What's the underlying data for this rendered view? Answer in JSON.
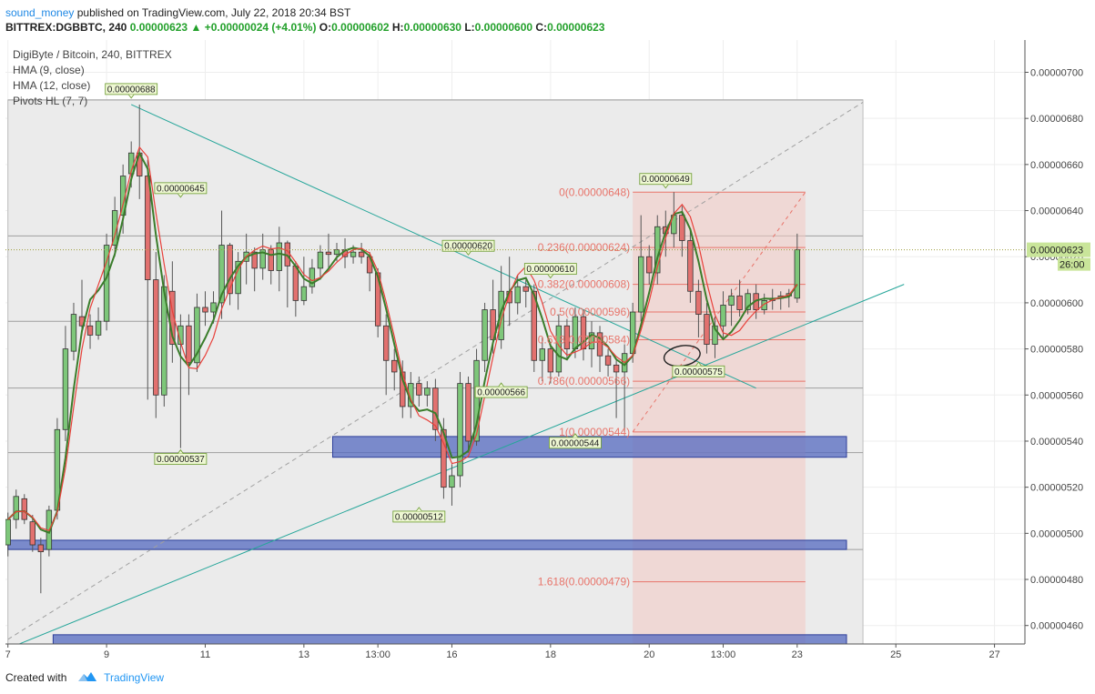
{
  "header": {
    "author": "sound_money",
    "published_text": "published on TradingView.com, July 22, 2018 20:34 BST"
  },
  "quote": {
    "symbol": "BITTREX:DGBBTC, 240",
    "last": "0.00000623",
    "change": "+0.00000024 (+4.01%)",
    "o_label": "O:",
    "o": "0.00000602",
    "h_label": "H:",
    "h": "0.00000630",
    "l_label": "L:",
    "l": "0.00000600",
    "c_label": "C:",
    "c": "0.00000623"
  },
  "legend": {
    "title": "DigiByte / Bitcoin, 240, BITTREX",
    "hma9": "HMA (9, close)",
    "hma12": "HMA (12, close)",
    "pivots": "Pivots HL (7, 7)"
  },
  "footer": {
    "created_with": "Created with",
    "brand": "TradingView"
  },
  "colors": {
    "up": "#7ec77a",
    "down": "#e2716f",
    "hma9": "#3a7d2b",
    "hma12": "#e8403a",
    "trend": "#26a69a",
    "zone": "#5469c0",
    "fib": "#e8746a",
    "bg_shade": "#ebebeb"
  },
  "chart_data": {
    "type": "candlestick",
    "y_tick_labels": [
      "0.00000700",
      "0.00000680",
      "0.00000660",
      "0.00000640",
      "0.00000620",
      "0.00000600",
      "0.00000580",
      "0.00000560",
      "0.00000540",
      "0.00000520",
      "0.00000500",
      "0.00000480",
      "0.00000460"
    ],
    "y_ticks": [
      7.0,
      6.8,
      6.6,
      6.4,
      6.2,
      6.0,
      5.8,
      5.6,
      5.4,
      5.2,
      5.0,
      4.8,
      4.6
    ],
    "y_unit_note": "values in 1e-6 BTC",
    "ylim": [
      4.52,
      7.14
    ],
    "x_tick_labels": [
      "7",
      "9",
      "11",
      "13",
      "13:00",
      "16",
      "18",
      "20",
      "13:00",
      "23",
      "25",
      "27"
    ],
    "x_ticks": [
      0,
      12,
      24,
      36,
      45,
      54,
      66,
      78,
      87,
      96,
      108,
      120
    ],
    "xlim": [
      -0.3,
      123.7
    ],
    "current_price_label": "0.00000623",
    "countdown_label": "26:00",
    "candles": [
      [
        4.95,
        5.06,
        4.9,
        5.09
      ],
      [
        5.06,
        5.16,
        5.02,
        5.19
      ],
      [
        5.15,
        5.06,
        5.04,
        5.17
      ],
      [
        5.05,
        4.95,
        4.92,
        5.08
      ],
      [
        4.95,
        4.92,
        4.74,
        4.98
      ],
      [
        4.93,
        5.1,
        4.9,
        5.12
      ],
      [
        5.1,
        5.45,
        5.06,
        5.5
      ],
      [
        5.45,
        5.8,
        5.4,
        5.9
      ],
      [
        5.79,
        5.95,
        5.75,
        6.0
      ],
      [
        5.94,
        5.9,
        5.86,
        6.1
      ],
      [
        5.9,
        5.86,
        5.8,
        5.95
      ],
      [
        5.86,
        5.92,
        5.84,
        5.98
      ],
      [
        5.92,
        6.25,
        5.88,
        6.3
      ],
      [
        6.25,
        6.4,
        6.2,
        6.46
      ],
      [
        6.38,
        6.55,
        6.3,
        6.6
      ],
      [
        6.56,
        6.65,
        6.5,
        6.7
      ],
      [
        6.65,
        6.55,
        6.45,
        6.86
      ],
      [
        6.55,
        6.1,
        5.58,
        6.62
      ],
      [
        6.1,
        5.6,
        5.5,
        6.22
      ],
      [
        5.6,
        6.07,
        5.55,
        6.12
      ],
      [
        6.05,
        5.82,
        5.74,
        6.18
      ],
      [
        5.82,
        5.9,
        5.37,
        5.95
      ],
      [
        5.9,
        5.74,
        5.6,
        5.95
      ],
      [
        5.74,
        5.98,
        5.7,
        6.04
      ],
      [
        5.98,
        5.96,
        5.9,
        6.05
      ],
      [
        5.96,
        6.0,
        5.91,
        6.05
      ],
      [
        6.0,
        6.25,
        5.93,
        6.4
      ],
      [
        6.25,
        6.04,
        5.99,
        6.26
      ],
      [
        6.04,
        6.18,
        5.97,
        6.22
      ],
      [
        6.18,
        6.22,
        6.08,
        6.3
      ],
      [
        6.22,
        6.15,
        6.05,
        6.24
      ],
      [
        6.15,
        6.23,
        6.1,
        6.3
      ],
      [
        6.23,
        6.14,
        6.08,
        6.25
      ],
      [
        6.14,
        6.26,
        6.05,
        6.33
      ],
      [
        6.26,
        6.16,
        5.98,
        6.27
      ],
      [
        6.16,
        6.01,
        5.94,
        6.18
      ],
      [
        6.01,
        6.07,
        5.99,
        6.2
      ],
      [
        6.07,
        6.15,
        6.04,
        6.19
      ],
      [
        6.15,
        6.22,
        6.1,
        6.25
      ],
      [
        6.22,
        6.21,
        6.15,
        6.3
      ],
      [
        6.21,
        6.23,
        6.18,
        6.26
      ],
      [
        6.23,
        6.2,
        6.15,
        6.28
      ],
      [
        6.2,
        6.22,
        6.17,
        6.25
      ],
      [
        6.22,
        6.2,
        6.17,
        6.26
      ],
      [
        6.2,
        6.13,
        6.05,
        6.22
      ],
      [
        6.13,
        5.9,
        5.85,
        6.15
      ],
      [
        5.9,
        5.75,
        5.6,
        5.95
      ],
      [
        5.75,
        5.7,
        5.62,
        5.8
      ],
      [
        5.7,
        5.55,
        5.5,
        5.75
      ],
      [
        5.55,
        5.65,
        5.5,
        5.7
      ],
      [
        5.65,
        5.6,
        5.55,
        5.68
      ],
      [
        5.6,
        5.63,
        5.55,
        5.66
      ],
      [
        5.63,
        5.45,
        5.4,
        5.67
      ],
      [
        5.45,
        5.2,
        5.15,
        5.5
      ],
      [
        5.2,
        5.25,
        5.12,
        5.3
      ],
      [
        5.25,
        5.65,
        5.2,
        5.7
      ],
      [
        5.65,
        5.4,
        5.35,
        5.68
      ],
      [
        5.4,
        5.75,
        5.38,
        5.8
      ],
      [
        5.75,
        5.97,
        5.7,
        6.0
      ],
      [
        5.97,
        5.84,
        5.78,
        6.1
      ],
      [
        5.84,
        6.05,
        5.8,
        6.16
      ],
      [
        6.05,
        6.0,
        5.9,
        6.2
      ],
      [
        6.0,
        6.07,
        5.95,
        6.12
      ],
      [
        6.07,
        6.05,
        5.98,
        6.1
      ],
      [
        6.05,
        5.75,
        5.7,
        6.08
      ],
      [
        5.75,
        5.8,
        5.66,
        5.85
      ],
      [
        5.8,
        5.7,
        5.65,
        5.83
      ],
      [
        5.7,
        5.9,
        5.68,
        5.95
      ],
      [
        5.9,
        5.8,
        5.75,
        5.93
      ],
      [
        5.8,
        5.94,
        5.76,
        5.98
      ],
      [
        5.94,
        5.8,
        5.75,
        5.97
      ],
      [
        5.8,
        5.87,
        5.72,
        5.92
      ],
      [
        5.87,
        5.77,
        5.7,
        5.9
      ],
      [
        5.77,
        5.73,
        5.68,
        5.8
      ],
      [
        5.73,
        5.7,
        5.5,
        5.75
      ],
      [
        5.7,
        5.78,
        5.44,
        5.82
      ],
      [
        5.78,
        5.96,
        5.74,
        6.0
      ],
      [
        5.96,
        6.2,
        5.92,
        6.38
      ],
      [
        6.2,
        6.13,
        6.08,
        6.25
      ],
      [
        6.13,
        6.33,
        6.08,
        6.38
      ],
      [
        6.33,
        6.3,
        6.2,
        6.4
      ],
      [
        6.3,
        6.38,
        6.24,
        6.48
      ],
      [
        6.38,
        6.27,
        6.2,
        6.42
      ],
      [
        6.27,
        6.05,
        6.0,
        6.32
      ],
      [
        6.05,
        5.95,
        5.85,
        6.1
      ],
      [
        5.95,
        5.82,
        5.78,
        6.0
      ],
      [
        5.82,
        5.9,
        5.76,
        5.94
      ],
      [
        5.9,
        5.99,
        5.85,
        6.05
      ],
      [
        5.99,
        6.03,
        5.9,
        6.06
      ],
      [
        6.03,
        5.97,
        5.94,
        6.1
      ],
      [
        5.97,
        6.04,
        5.95,
        6.06
      ],
      [
        6.04,
        5.97,
        5.93,
        6.08
      ],
      [
        5.97,
        6.01,
        5.95,
        6.04
      ],
      [
        6.01,
        6.02,
        5.97,
        6.06
      ],
      [
        6.02,
        6.03,
        5.97,
        6.05
      ],
      [
        6.03,
        6.04,
        5.98,
        6.06
      ],
      [
        6.02,
        6.23,
        6.0,
        6.3
      ]
    ],
    "pivot_labels": [
      {
        "x": 15,
        "y": 6.88,
        "text": "0.00000688",
        "pos": "above"
      },
      {
        "x": 21,
        "y": 6.45,
        "text": "0.00000645",
        "pos": "above"
      },
      {
        "x": 21,
        "y": 5.37,
        "text": "0.00000537",
        "pos": "below"
      },
      {
        "x": 50,
        "y": 5.12,
        "text": "0.00000512",
        "pos": "below"
      },
      {
        "x": 56,
        "y": 6.2,
        "text": "0.00000620",
        "pos": "above"
      },
      {
        "x": 66,
        "y": 6.1,
        "text": "0.00000610",
        "pos": "above"
      },
      {
        "x": 60,
        "y": 5.66,
        "text": "0.00000566",
        "pos": "below"
      },
      {
        "x": 69,
        "y": 5.44,
        "text": "0.00000544",
        "pos": "below"
      },
      {
        "x": 80,
        "y": 6.49,
        "text": "0.00000649",
        "pos": "above"
      },
      {
        "x": 84,
        "y": 5.75,
        "text": "0.00000575",
        "pos": "below"
      }
    ],
    "fib_levels": [
      {
        "ratio": "0",
        "price": 6.48,
        "label": "0(0.00000648)"
      },
      {
        "ratio": "0.236",
        "price": 6.24,
        "label": "0.236(0.00000624)"
      },
      {
        "ratio": "0.382",
        "price": 6.08,
        "label": "0.382(0.00000608)"
      },
      {
        "ratio": "0.5",
        "price": 5.96,
        "label": "0.5(0.00000596)"
      },
      {
        "ratio": "0.618",
        "price": 5.84,
        "label": "0.618(0.00000584)"
      },
      {
        "ratio": "0.786",
        "price": 5.66,
        "label": "0.786(0.00000566)"
      },
      {
        "ratio": "1",
        "price": 5.44,
        "label": "1(0.00000544)"
      },
      {
        "ratio": "1.618",
        "price": 4.79,
        "label": "1.618(0.00000479)"
      }
    ],
    "fib_range_x": [
      76,
      97
    ],
    "gray_box": {
      "x": [
        0,
        104
      ],
      "y": [
        4.52,
        6.88
      ]
    },
    "grey_hlines": [
      6.88,
      6.29,
      5.92,
      5.63,
      5.35,
      4.93
    ],
    "support_zones": [
      {
        "x": [
          39.5,
          102
        ],
        "y": [
          5.33,
          5.42
        ]
      },
      {
        "x": [
          0,
          102
        ],
        "y": [
          4.93,
          4.97
        ]
      },
      {
        "x": [
          5.5,
          102
        ],
        "y": [
          4.52,
          4.56
        ]
      }
    ],
    "trendlines": [
      {
        "x1": 15,
        "y1": 6.86,
        "x2": 91,
        "y2": 5.63,
        "color": "trend"
      },
      {
        "x1": 0,
        "y1": 4.5,
        "x2": 109,
        "y2": 6.08,
        "color": "trend"
      },
      {
        "x1": 0,
        "y1": 4.54,
        "x2": 104,
        "y2": 6.87,
        "color": "dash"
      },
      {
        "x1": 76,
        "y1": 5.44,
        "x2": 97,
        "y2": 6.48,
        "color": "fibdash"
      }
    ]
  }
}
